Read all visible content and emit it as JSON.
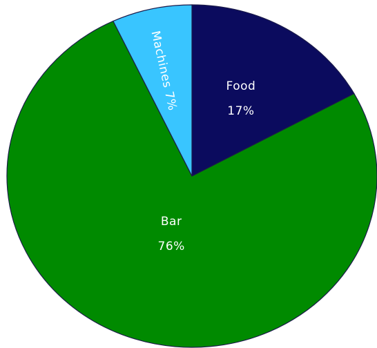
{
  "chart_data": {
    "type": "pie",
    "title": "",
    "start_angle_deg": 0,
    "direction": "clockwise",
    "slices": [
      {
        "name": "Food",
        "value": 17,
        "percent_label": "17%",
        "color": "#0b0b5e",
        "label_style": "stacked"
      },
      {
        "name": "Bar",
        "value": 76,
        "percent_label": "76%",
        "color": "#008a00",
        "label_style": "stacked"
      },
      {
        "name": "Machines",
        "value": 7,
        "percent_label": "7%",
        "color": "#39c5ff",
        "label_style": "rotated"
      }
    ]
  }
}
